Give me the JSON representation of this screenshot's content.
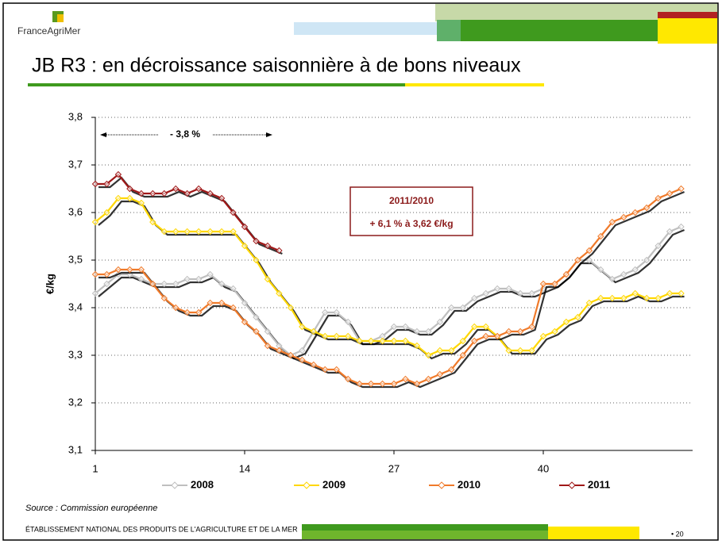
{
  "logo": "FranceAgriMer",
  "title": "JB R3 : en décroissance saisonnière à de bons niveaux",
  "chart_data": {
    "type": "line",
    "ylabel": "€/kg",
    "x": [
      1,
      2,
      3,
      4,
      5,
      6,
      7,
      8,
      9,
      10,
      11,
      12,
      13,
      14,
      15,
      16,
      17,
      18,
      19,
      20,
      21,
      22,
      23,
      24,
      25,
      26,
      27,
      28,
      29,
      30,
      31,
      32,
      33,
      34,
      35,
      36,
      37,
      38,
      39,
      40,
      41,
      42,
      43,
      44,
      45,
      46,
      47,
      48,
      49,
      50,
      51,
      52
    ],
    "xlim": [
      1,
      53
    ],
    "xticks": [
      1,
      14,
      27,
      40
    ],
    "ylim": [
      3.1,
      3.8
    ],
    "yticks": [
      {
        "value": 3.1,
        "label": "3,1"
      },
      {
        "value": 3.2,
        "label": "3,2"
      },
      {
        "value": 3.3,
        "label": "3,3"
      },
      {
        "value": 3.4,
        "label": "3,4"
      },
      {
        "value": 3.5,
        "label": "3,5"
      },
      {
        "value": 3.6,
        "label": "3,6"
      },
      {
        "value": 3.7,
        "label": "3,7"
      },
      {
        "value": 3.8,
        "label": "3,8"
      }
    ],
    "grid": true,
    "series": [
      {
        "name": "2008",
        "color": "#bfbfbf",
        "values": [
          3.43,
          3.45,
          3.47,
          3.47,
          3.46,
          3.45,
          3.45,
          3.45,
          3.46,
          3.46,
          3.47,
          3.45,
          3.44,
          3.41,
          3.38,
          3.35,
          3.32,
          3.3,
          3.31,
          3.35,
          3.39,
          3.39,
          3.37,
          3.33,
          3.33,
          3.34,
          3.36,
          3.36,
          3.35,
          3.35,
          3.37,
          3.4,
          3.4,
          3.42,
          3.43,
          3.44,
          3.44,
          3.43,
          3.43,
          3.44,
          3.45,
          3.47,
          3.5,
          3.5,
          3.48,
          3.46,
          3.47,
          3.48,
          3.5,
          3.53,
          3.56,
          3.57
        ]
      },
      {
        "name": "2009",
        "color": "#ffd700",
        "values": [
          3.58,
          3.6,
          3.63,
          3.63,
          3.62,
          3.58,
          3.56,
          3.56,
          3.56,
          3.56,
          3.56,
          3.56,
          3.56,
          3.53,
          3.5,
          3.46,
          3.43,
          3.4,
          3.36,
          3.35,
          3.34,
          3.34,
          3.34,
          3.33,
          3.33,
          3.33,
          3.33,
          3.33,
          3.32,
          3.3,
          3.31,
          3.31,
          3.33,
          3.36,
          3.36,
          3.34,
          3.31,
          3.31,
          3.31,
          3.34,
          3.35,
          3.37,
          3.38,
          3.41,
          3.42,
          3.42,
          3.42,
          3.43,
          3.42,
          3.42,
          3.43,
          3.43
        ]
      },
      {
        "name": "2010",
        "color": "#f07a2a",
        "values": [
          3.47,
          3.47,
          3.48,
          3.48,
          3.48,
          3.45,
          3.42,
          3.4,
          3.39,
          3.39,
          3.41,
          3.41,
          3.4,
          3.37,
          3.35,
          3.32,
          3.31,
          3.3,
          3.29,
          3.28,
          3.27,
          3.27,
          3.25,
          3.24,
          3.24,
          3.24,
          3.24,
          3.25,
          3.24,
          3.25,
          3.26,
          3.27,
          3.3,
          3.33,
          3.34,
          3.34,
          3.35,
          3.35,
          3.36,
          3.45,
          3.45,
          3.47,
          3.5,
          3.52,
          3.55,
          3.58,
          3.59,
          3.6,
          3.61,
          3.63,
          3.64,
          3.65
        ]
      },
      {
        "name": "2011",
        "color": "#a01818",
        "values": [
          3.66,
          3.66,
          3.68,
          3.65,
          3.64,
          3.64,
          3.64,
          3.65,
          3.64,
          3.65,
          3.64,
          3.63,
          3.6,
          3.57,
          3.54,
          3.53,
          3.52,
          null,
          null,
          null,
          null,
          null,
          null,
          null,
          null,
          null,
          null,
          null,
          null,
          null,
          null,
          null,
          null,
          null,
          null,
          null,
          null,
          null,
          null,
          null,
          null,
          null,
          null,
          null,
          null,
          null,
          null,
          null,
          null,
          null,
          null,
          null
        ]
      }
    ],
    "annotations": [
      "- 3,8 %",
      "2011/2010",
      "+ 6,1 % à 3,62 €/kg"
    ],
    "source": "Source : Commission européenne"
  },
  "footer": "ÉTABLISSEMENT NATIONAL DES PRODUITS DE L'AGRICULTURE ET DE LA MER",
  "page": "• 20"
}
